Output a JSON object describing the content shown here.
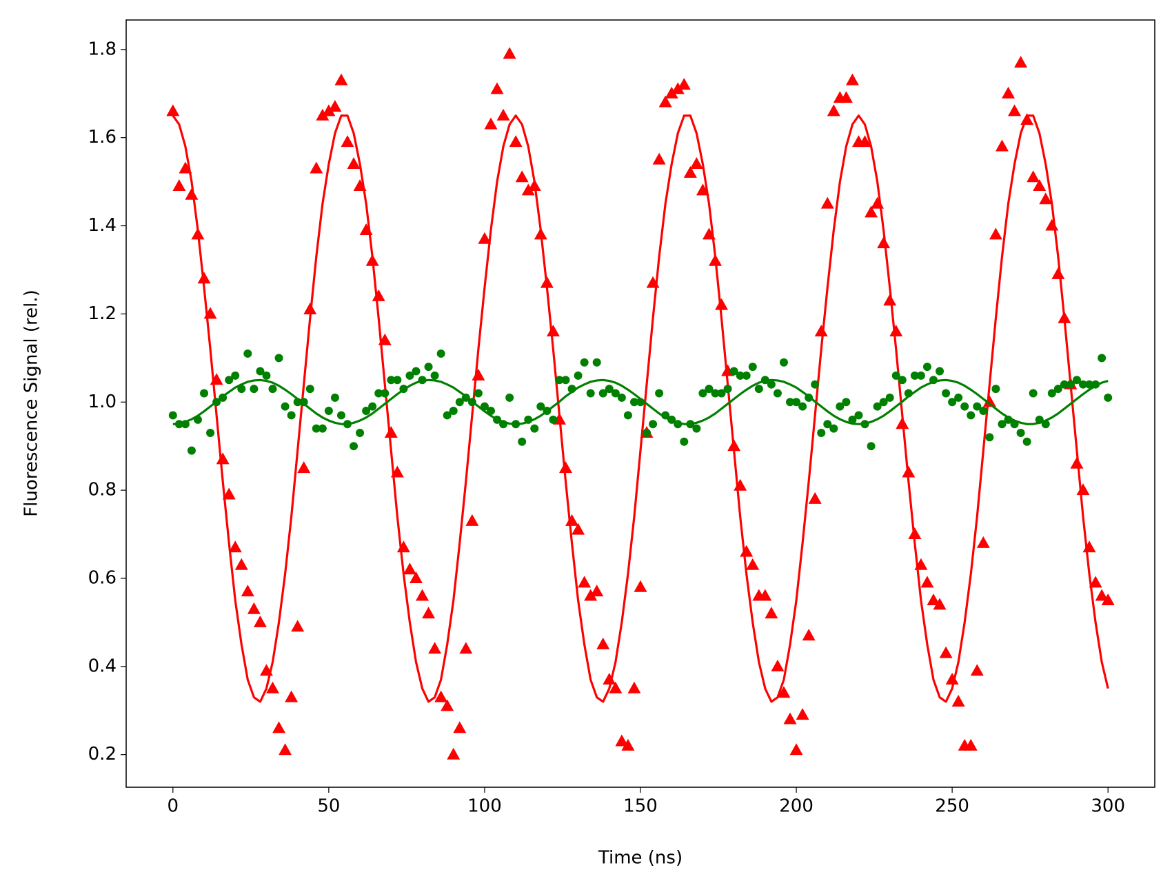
{
  "chart_data": {
    "type": "scatter",
    "xlabel": "Time (ns)",
    "ylabel": "Fluorescence Signal (rel.)",
    "xlim": [
      -15,
      315
    ],
    "ylim": [
      0.126,
      1.867
    ],
    "xticks": [
      0,
      50,
      100,
      150,
      200,
      250,
      300
    ],
    "yticks": [
      0.2,
      0.4,
      0.6,
      0.8,
      {
        "value": 1,
        "label": "1.0"
      },
      1.2,
      1.4,
      1.6,
      1.8
    ],
    "x": [
      0,
      2,
      4,
      6,
      8,
      10,
      12,
      14,
      16,
      18,
      20,
      22,
      24,
      26,
      28,
      30,
      32,
      34,
      36,
      38,
      40,
      42,
      44,
      46,
      48,
      50,
      52,
      54,
      56,
      58,
      60,
      62,
      64,
      66,
      68,
      70,
      72,
      74,
      76,
      78,
      80,
      82,
      84,
      86,
      88,
      90,
      92,
      94,
      96,
      98,
      100,
      102,
      104,
      106,
      108,
      110,
      112,
      114,
      116,
      118,
      120,
      122,
      124,
      126,
      128,
      130,
      132,
      134,
      136,
      138,
      140,
      142,
      144,
      146,
      148,
      150,
      152,
      154,
      156,
      158,
      160,
      162,
      164,
      166,
      168,
      170,
      172,
      174,
      176,
      178,
      180,
      182,
      184,
      186,
      188,
      190,
      192,
      194,
      196,
      198,
      200,
      202,
      204,
      206,
      208,
      210,
      212,
      214,
      216,
      218,
      220,
      222,
      224,
      226,
      228,
      230,
      232,
      234,
      236,
      238,
      240,
      242,
      244,
      246,
      248,
      250,
      252,
      254,
      256,
      258,
      260,
      262,
      264,
      266,
      268,
      270,
      272,
      274,
      276,
      278,
      280,
      282,
      284,
      286,
      288,
      290,
      292,
      294,
      296,
      298,
      300
    ],
    "series": [
      {
        "type": "scatter",
        "marker": "triangle",
        "color": "#ff0000",
        "values": [
          1.66,
          1.49,
          1.53,
          1.47,
          1.38,
          1.28,
          1.2,
          1.05,
          0.87,
          0.79,
          0.67,
          0.63,
          0.57,
          0.53,
          0.5,
          0.39,
          0.35,
          0.26,
          0.21,
          0.33,
          0.49,
          0.85,
          1.21,
          1.53,
          1.65,
          1.66,
          1.67,
          1.73,
          1.59,
          1.54,
          1.49,
          1.39,
          1.32,
          1.24,
          1.14,
          0.93,
          0.84,
          0.67,
          0.62,
          0.6,
          0.56,
          0.52,
          0.44,
          0.33,
          0.31,
          0.2,
          0.26,
          0.44,
          0.73,
          1.06,
          1.37,
          1.63,
          1.71,
          1.65,
          1.79,
          1.59,
          1.51,
          1.48,
          1.49,
          1.38,
          1.27,
          1.16,
          0.96,
          0.85,
          0.73,
          0.71,
          0.59,
          0.56,
          0.57,
          0.45,
          0.37,
          0.35,
          0.23,
          0.22,
          0.35,
          0.58,
          0.93,
          1.27,
          1.55,
          1.68,
          1.7,
          1.71,
          1.72,
          1.52,
          1.54,
          1.48,
          1.38,
          1.32,
          1.22,
          1.07,
          0.9,
          0.81,
          0.66,
          0.63,
          0.56,
          0.56,
          0.52,
          0.4,
          0.34,
          0.28,
          0.21,
          0.29,
          0.47,
          0.78,
          1.16,
          1.45,
          1.66,
          1.69,
          1.69,
          1.73,
          1.59,
          1.59,
          1.43,
          1.45,
          1.36,
          1.23,
          1.16,
          0.95,
          0.84,
          0.7,
          0.63,
          0.59,
          0.55,
          0.54,
          0.43,
          0.37,
          0.32,
          0.22,
          0.22,
          0.39,
          0.68,
          1.0,
          1.38,
          1.58,
          1.7,
          1.66,
          1.77,
          1.64,
          1.51,
          1.49,
          1.46,
          1.4,
          1.29,
          1.19,
          1.04,
          0.86,
          0.8,
          0.67,
          0.59,
          0.56,
          0.55
        ]
      },
      {
        "type": "line",
        "color": "#ff0000",
        "values": [
          1.65,
          1.63,
          1.58,
          1.5,
          1.39,
          1.26,
          1.12,
          0.97,
          0.82,
          0.68,
          0.55,
          0.45,
          0.37,
          0.33,
          0.32,
          0.35,
          0.41,
          0.5,
          0.61,
          0.74,
          0.89,
          1.04,
          1.19,
          1.33,
          1.45,
          1.54,
          1.61,
          1.65,
          1.65,
          1.61,
          1.54,
          1.45,
          1.33,
          1.19,
          1.04,
          0.89,
          0.74,
          0.61,
          0.5,
          0.41,
          0.35,
          0.32,
          0.33,
          0.37,
          0.45,
          0.55,
          0.68,
          0.82,
          0.97,
          1.12,
          1.26,
          1.39,
          1.5,
          1.58,
          1.63,
          1.65,
          1.63,
          1.58,
          1.5,
          1.39,
          1.26,
          1.12,
          0.97,
          0.82,
          0.68,
          0.55,
          0.45,
          0.37,
          0.33,
          0.32,
          0.35,
          0.41,
          0.5,
          0.61,
          0.74,
          0.89,
          1.04,
          1.19,
          1.33,
          1.45,
          1.54,
          1.61,
          1.65,
          1.65,
          1.61,
          1.54,
          1.45,
          1.33,
          1.19,
          1.04,
          0.89,
          0.74,
          0.61,
          0.5,
          0.41,
          0.35,
          0.32,
          0.33,
          0.37,
          0.45,
          0.55,
          0.68,
          0.82,
          0.97,
          1.12,
          1.26,
          1.39,
          1.5,
          1.58,
          1.63,
          1.65,
          1.63,
          1.58,
          1.5,
          1.39,
          1.26,
          1.12,
          0.97,
          0.82,
          0.68,
          0.55,
          0.45,
          0.37,
          0.33,
          0.32,
          0.35,
          0.41,
          0.5,
          0.61,
          0.74,
          0.89,
          1.04,
          1.19,
          1.33,
          1.45,
          1.54,
          1.61,
          1.65,
          1.65,
          1.61,
          1.54,
          1.45,
          1.33,
          1.19,
          1.04,
          0.89,
          0.74,
          0.61,
          0.5,
          0.41,
          0.35
        ]
      },
      {
        "type": "scatter",
        "marker": "circle",
        "color": "#008000",
        "values": [
          0.97,
          0.95,
          0.95,
          0.89,
          0.96,
          1.02,
          0.93,
          1.0,
          1.01,
          1.05,
          1.06,
          1.03,
          1.11,
          1.03,
          1.07,
          1.06,
          1.03,
          1.1,
          0.99,
          0.97,
          1.0,
          1.0,
          1.03,
          0.94,
          0.94,
          0.98,
          1.01,
          0.97,
          0.95,
          0.9,
          0.93,
          0.98,
          0.99,
          1.02,
          1.02,
          1.05,
          1.05,
          1.03,
          1.06,
          1.07,
          1.05,
          1.08,
          1.06,
          1.11,
          0.97,
          0.98,
          1.0,
          1.01,
          1.0,
          1.02,
          0.99,
          0.98,
          0.96,
          0.95,
          1.01,
          0.95,
          0.91,
          0.96,
          0.94,
          0.99,
          0.98,
          0.96,
          1.05,
          1.05,
          1.03,
          1.06,
          1.09,
          1.02,
          1.09,
          1.02,
          1.03,
          1.02,
          1.01,
          0.97,
          1.0,
          1.0,
          0.93,
          0.95,
          1.02,
          0.97,
          0.96,
          0.95,
          0.91,
          0.95,
          0.94,
          1.02,
          1.03,
          1.02,
          1.02,
          1.03,
          1.07,
          1.06,
          1.06,
          1.08,
          1.03,
          1.05,
          1.04,
          1.02,
          1.09,
          1.0,
          1.0,
          0.99,
          1.01,
          1.04,
          0.93,
          0.95,
          0.94,
          0.99,
          1.0,
          0.96,
          0.97,
          0.95,
          0.9,
          0.99,
          1.0,
          1.01,
          1.06,
          1.05,
          1.02,
          1.06,
          1.06,
          1.08,
          1.05,
          1.07,
          1.02,
          1.0,
          1.01,
          0.99,
          0.97,
          0.99,
          0.98,
          0.92,
          1.03,
          0.95,
          0.96,
          0.95,
          0.93,
          0.91,
          1.02,
          0.96,
          0.95,
          1.02,
          1.03,
          1.04,
          1.04,
          1.05,
          1.04,
          1.04,
          1.04,
          1.1,
          1.01
        ]
      },
      {
        "type": "line",
        "color": "#008000",
        "values": [
          0.95,
          0.951,
          0.955,
          0.961,
          0.969,
          0.979,
          0.99,
          1.001,
          1.013,
          1.023,
          1.033,
          1.04,
          1.046,
          1.049,
          1.05,
          1.048,
          1.044,
          1.037,
          1.028,
          1.018,
          1.007,
          0.996,
          0.985,
          0.974,
          0.965,
          0.958,
          0.953,
          0.95,
          0.95,
          0.953,
          0.958,
          0.965,
          0.974,
          0.985,
          0.996,
          1.007,
          1.018,
          1.028,
          1.037,
          1.044,
          1.048,
          1.05,
          1.049,
          1.046,
          1.04,
          1.033,
          1.023,
          1.013,
          1.001,
          0.99,
          0.979,
          0.969,
          0.961,
          0.955,
          0.951,
          0.95,
          0.951,
          0.955,
          0.961,
          0.969,
          0.979,
          0.99,
          1.001,
          1.013,
          1.023,
          1.033,
          1.04,
          1.046,
          1.049,
          1.05,
          1.048,
          1.044,
          1.037,
          1.028,
          1.018,
          1.007,
          0.996,
          0.985,
          0.974,
          0.965,
          0.958,
          0.953,
          0.95,
          0.95,
          0.953,
          0.958,
          0.965,
          0.974,
          0.985,
          0.996,
          1.007,
          1.018,
          1.028,
          1.037,
          1.044,
          1.048,
          1.05,
          1.049,
          1.046,
          1.04,
          1.033,
          1.023,
          1.013,
          1.001,
          0.99,
          0.979,
          0.969,
          0.961,
          0.955,
          0.951,
          0.95,
          0.951,
          0.955,
          0.961,
          0.969,
          0.979,
          0.99,
          1.001,
          1.013,
          1.023,
          1.033,
          1.04,
          1.046,
          1.049,
          1.05,
          1.048,
          1.044,
          1.037,
          1.028,
          1.018,
          1.007,
          0.996,
          0.985,
          0.974,
          0.965,
          0.958,
          0.953,
          0.95,
          0.95,
          0.953,
          0.958,
          0.965,
          0.974,
          0.985,
          0.996,
          1.007,
          1.018,
          1.028,
          1.037,
          1.044,
          1.048
        ]
      }
    ]
  }
}
